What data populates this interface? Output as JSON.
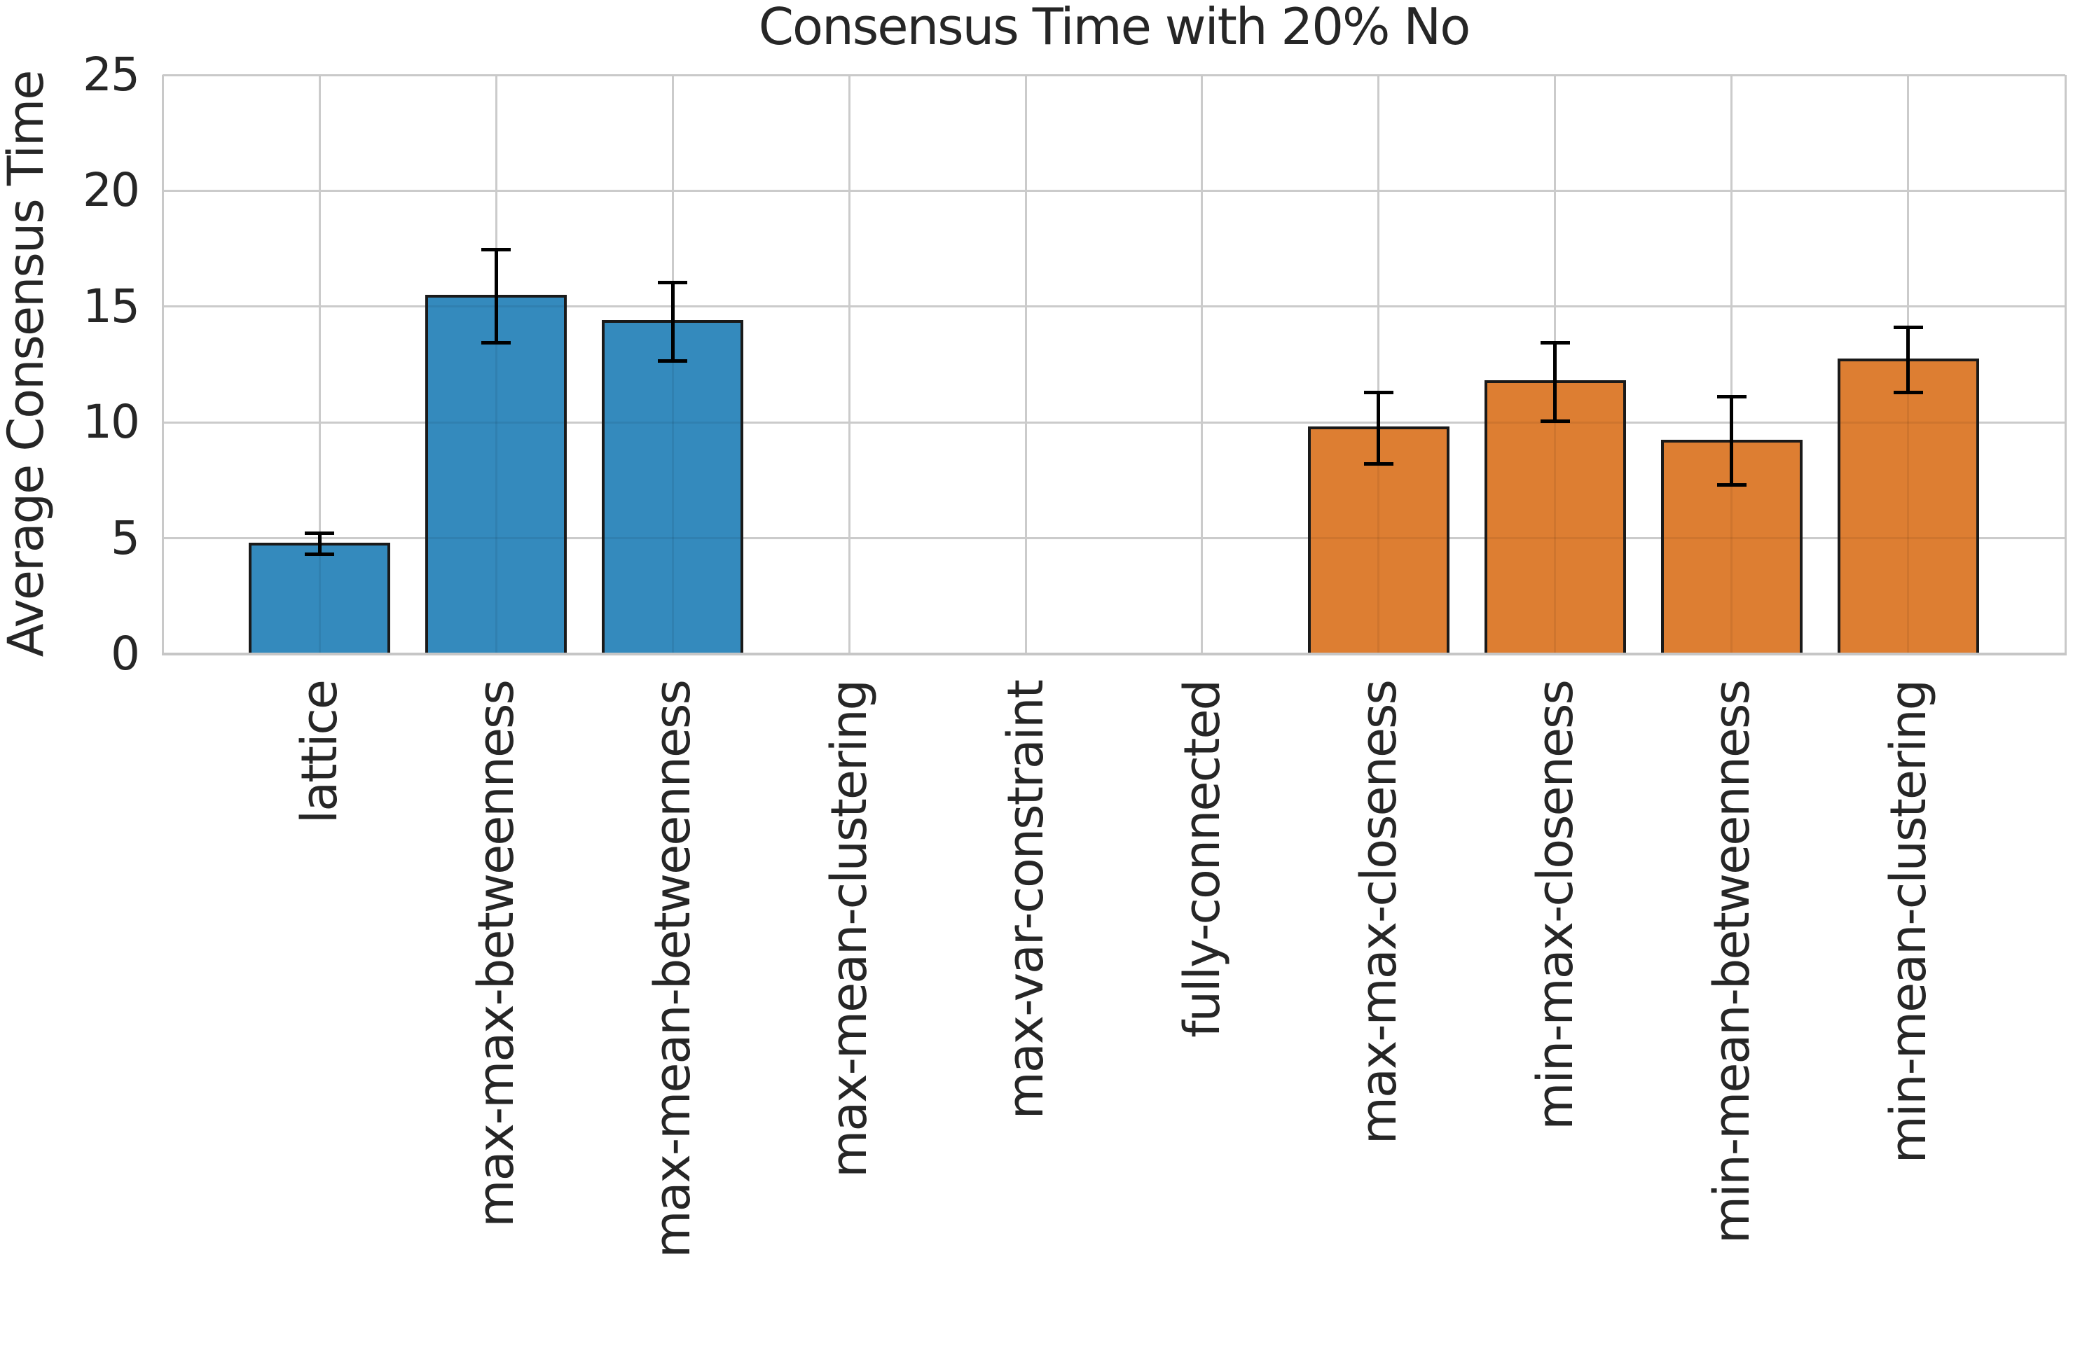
{
  "chart_data": {
    "type": "bar",
    "title": "Consensus Time with 20% No",
    "ylabel": "Average Consensus Time",
    "xlabel": "",
    "categories": [
      "lattice",
      "max-max-betweenness",
      "max-mean-betweenness",
      "max-mean-clustering",
      "max-var-constraint",
      "fully-connected",
      "max-max-closeness",
      "min-max-closeness",
      "min-mean-betweenness",
      "min-mean-clustering"
    ],
    "values": [
      4.75,
      15.45,
      14.35,
      0,
      0,
      0,
      9.75,
      11.75,
      9.2,
      12.7
    ],
    "errors": [
      0.45,
      2.0,
      1.7,
      0,
      0,
      0,
      1.55,
      1.7,
      1.9,
      1.4
    ],
    "bar_colors": [
      "#348abd",
      "#348abd",
      "#348abd",
      "#348abd",
      "#348abd",
      "#348abd",
      "#dd7e32",
      "#dd7e32",
      "#dd7e32",
      "#dd7e32"
    ],
    "ylim": [
      0,
      25
    ],
    "yticks": [
      0,
      5,
      10,
      15,
      20,
      25
    ],
    "grid": "on",
    "legend": "none",
    "error_bar_style": "black caps",
    "styles": {
      "background": "#ffffff",
      "grid_color": "#cbcbcb",
      "spine_color": "#c9c9c9",
      "text_color": "#262626",
      "bar_edge_color": "#1a1a1a",
      "error_color": "#000000",
      "blue": "#348abd",
      "orange": "#dd7e32"
    }
  }
}
